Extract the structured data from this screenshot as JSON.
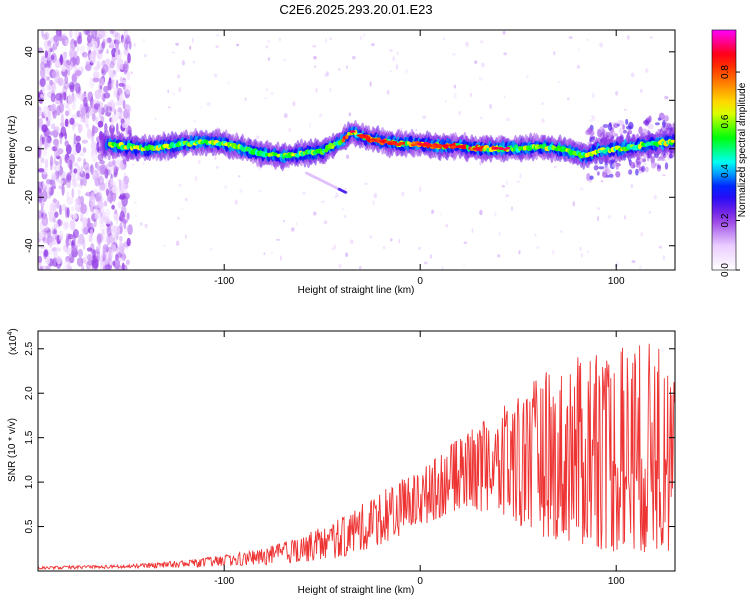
{
  "title": "C2E6.2025.293.20.01.E23",
  "chart_data": [
    {
      "type": "heatmap",
      "name": "spectrogram",
      "xlabel": "Height of straight line (km)",
      "ylabel": "Frequency (Hz)",
      "xlim": [
        -195,
        130
      ],
      "ylim": [
        -50,
        49
      ],
      "xticks": [
        -100,
        0,
        100
      ],
      "yticks": [
        -40,
        -20,
        0,
        20,
        40
      ],
      "colorbar": {
        "label": "Normalized spectral amplitude",
        "range": [
          0,
          0.97
        ],
        "ticks": [
          "0.0",
          "0.2",
          "0.4",
          "0.6",
          "0.8"
        ],
        "colors": [
          "#ffffff",
          "#e8c8ff",
          "#8a2be2",
          "#0000ff",
          "#00ffff",
          "#00ff00",
          "#ffff00",
          "#ff8000",
          "#ff0000",
          "#ff00ff"
        ]
      },
      "ridge": {
        "name": "frequency ridge (Hz) vs height (km)",
        "x": [
          -162,
          -150,
          -140,
          -130,
          -120,
          -110,
          -100,
          -90,
          -80,
          -70,
          -60,
          -50,
          -40,
          -35,
          -30,
          -25,
          -20,
          -10,
          0,
          10,
          20,
          30,
          40,
          50,
          60,
          70,
          80,
          85,
          90,
          100,
          110,
          120,
          128
        ],
        "y": [
          2,
          1,
          0,
          1,
          2,
          3,
          2,
          0,
          -2,
          -3,
          -2,
          -1,
          3,
          7,
          5,
          4,
          3,
          2,
          2,
          1,
          1,
          0,
          0,
          0,
          1,
          0,
          -2,
          -3,
          -1,
          0,
          1,
          2,
          3
        ]
      },
      "side_branch": {
        "x": [
          -58,
          -38
        ],
        "y": [
          -10,
          -18
        ]
      },
      "noise_region_x": [
        -195,
        -148
      ]
    },
    {
      "type": "line",
      "name": "snr",
      "xlabel": "Height of straight line (km)",
      "ylabel": "SNR (10 * v/v)",
      "multiplier": "(x10",
      "multiplier_exp": "4",
      "multiplier_close": ")",
      "xlim": [
        -195,
        130
      ],
      "ylim": [
        0,
        2.7
      ],
      "xticks": [
        -100,
        0,
        100
      ],
      "yticks": [
        0.5,
        1.0,
        1.5,
        2.0,
        2.5
      ],
      "color": "#ee3333",
      "envelope": {
        "x": [
          -195,
          -150,
          -120,
          -100,
          -80,
          -60,
          -40,
          -20,
          0,
          20,
          40,
          60,
          80,
          100,
          120,
          130
        ],
        "upper": [
          0.05,
          0.07,
          0.12,
          0.18,
          0.25,
          0.4,
          0.6,
          0.9,
          1.15,
          1.5,
          1.8,
          2.2,
          2.4,
          2.6,
          2.6,
          2.3
        ],
        "lower": [
          0.02,
          0.03,
          0.04,
          0.05,
          0.07,
          0.1,
          0.15,
          0.3,
          0.5,
          0.7,
          0.6,
          0.4,
          0.3,
          0.2,
          0.2,
          0.2
        ]
      }
    }
  ]
}
